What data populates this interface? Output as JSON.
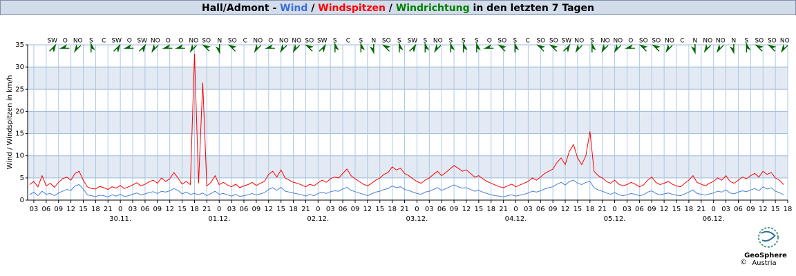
{
  "chart_data": {
    "type": "line",
    "title_parts": [
      {
        "text": "Hall/Admont - ",
        "color": "#000000"
      },
      {
        "text": "Wind",
        "color": "#3a6fd8"
      },
      {
        "text": " / ",
        "color": "#000000"
      },
      {
        "text": "Windspitzen",
        "color": "#ff0000"
      },
      {
        "text": " / ",
        "color": "#000000"
      },
      {
        "text": "Windrichtung",
        "color": "#008000"
      },
      {
        "text": " in den letzten 7 Tagen",
        "color": "#000000"
      }
    ],
    "y_label": "Wind / Windspitzen in km/h",
    "xlim": [
      1.5,
      186
    ],
    "ylim": [
      0,
      35
    ],
    "yticks": [
      0,
      5,
      10,
      15,
      20,
      25,
      30,
      35
    ],
    "grid": true,
    "xticks": [
      {
        "value": 3,
        "label": "03"
      },
      {
        "value": 6,
        "label": "06"
      },
      {
        "value": 9,
        "label": "09"
      },
      {
        "value": 12,
        "label": "12"
      },
      {
        "value": 15,
        "label": "15"
      },
      {
        "value": 18,
        "label": "18"
      },
      {
        "value": 21,
        "label": "21"
      },
      {
        "value": 24,
        "label": "0"
      },
      {
        "value": 27,
        "label": "03"
      },
      {
        "value": 30,
        "label": "06"
      },
      {
        "value": 33,
        "label": "09"
      },
      {
        "value": 36,
        "label": "12"
      },
      {
        "value": 39,
        "label": "15"
      },
      {
        "value": 42,
        "label": "18"
      },
      {
        "value": 45,
        "label": "21"
      },
      {
        "value": 48,
        "label": "0"
      },
      {
        "value": 51,
        "label": "03"
      },
      {
        "value": 54,
        "label": "06"
      },
      {
        "value": 57,
        "label": "09"
      },
      {
        "value": 60,
        "label": "12"
      },
      {
        "value": 63,
        "label": "15"
      },
      {
        "value": 66,
        "label": "18"
      },
      {
        "value": 69,
        "label": "21"
      },
      {
        "value": 72,
        "label": "0"
      },
      {
        "value": 75,
        "label": "03"
      },
      {
        "value": 78,
        "label": "06"
      },
      {
        "value": 81,
        "label": "09"
      },
      {
        "value": 84,
        "label": "12"
      },
      {
        "value": 87,
        "label": "15"
      },
      {
        "value": 90,
        "label": "18"
      },
      {
        "value": 93,
        "label": "21"
      },
      {
        "value": 96,
        "label": "0"
      },
      {
        "value": 99,
        "label": "03"
      },
      {
        "value": 102,
        "label": "06"
      },
      {
        "value": 105,
        "label": "09"
      },
      {
        "value": 108,
        "label": "12"
      },
      {
        "value": 111,
        "label": "15"
      },
      {
        "value": 114,
        "label": "18"
      },
      {
        "value": 117,
        "label": "21"
      },
      {
        "value": 120,
        "label": "0"
      },
      {
        "value": 123,
        "label": "03"
      },
      {
        "value": 126,
        "label": "06"
      },
      {
        "value": 129,
        "label": "09"
      },
      {
        "value": 132,
        "label": "12"
      },
      {
        "value": 135,
        "label": "15"
      },
      {
        "value": 138,
        "label": "18"
      },
      {
        "value": 141,
        "label": "21"
      },
      {
        "value": 144,
        "label": "0"
      },
      {
        "value": 147,
        "label": "03"
      },
      {
        "value": 150,
        "label": "06"
      },
      {
        "value": 153,
        "label": "09"
      },
      {
        "value": 156,
        "label": "12"
      },
      {
        "value": 159,
        "label": "15"
      },
      {
        "value": 162,
        "label": "18"
      },
      {
        "value": 165,
        "label": "21"
      },
      {
        "value": 168,
        "label": "0"
      },
      {
        "value": 171,
        "label": "03"
      },
      {
        "value": 174,
        "label": "06"
      },
      {
        "value": 177,
        "label": "09"
      },
      {
        "value": 180,
        "label": "12"
      },
      {
        "value": 183,
        "label": "15"
      },
      {
        "value": 186,
        "label": "18"
      }
    ],
    "date_labels": [
      {
        "value": 24,
        "label": "30.11."
      },
      {
        "value": 48,
        "label": "01.12."
      },
      {
        "value": 72,
        "label": "02.12."
      },
      {
        "value": 96,
        "label": "03.12."
      },
      {
        "value": 120,
        "label": "04.12."
      },
      {
        "value": 144,
        "label": "05.12."
      },
      {
        "value": 168,
        "label": "06.12."
      }
    ],
    "x": [
      2,
      3,
      4,
      5,
      6,
      7,
      8,
      9,
      10,
      11,
      12,
      13,
      14,
      15,
      16,
      17,
      18,
      19,
      20,
      21,
      22,
      23,
      24,
      25,
      26,
      27,
      28,
      29,
      30,
      31,
      32,
      33,
      34,
      35,
      36,
      37,
      38,
      39,
      40,
      41,
      42,
      43,
      44,
      45,
      46,
      47,
      48,
      49,
      50,
      51,
      52,
      53,
      54,
      55,
      56,
      57,
      58,
      59,
      60,
      61,
      62,
      63,
      64,
      65,
      66,
      67,
      68,
      69,
      70,
      71,
      72,
      73,
      74,
      75,
      76,
      77,
      78,
      79,
      80,
      81,
      82,
      83,
      84,
      85,
      86,
      87,
      88,
      89,
      90,
      91,
      92,
      93,
      94,
      95,
      96,
      97,
      98,
      99,
      100,
      101,
      102,
      103,
      104,
      105,
      106,
      107,
      108,
      109,
      110,
      111,
      112,
      113,
      114,
      115,
      116,
      117,
      118,
      119,
      120,
      121,
      122,
      123,
      124,
      125,
      126,
      127,
      128,
      129,
      130,
      131,
      132,
      133,
      134,
      135,
      136,
      137,
      138,
      139,
      140,
      141,
      142,
      143,
      144,
      145,
      146,
      147,
      148,
      149,
      150,
      151,
      152,
      153,
      154,
      155,
      156,
      157,
      158,
      159,
      160,
      161,
      162,
      163,
      164,
      165,
      166,
      167,
      168,
      169,
      170,
      171,
      172,
      173,
      174,
      175,
      176,
      177,
      178,
      179,
      180,
      181,
      182,
      183,
      184,
      185
    ],
    "series": [
      {
        "name": "Windspitzen",
        "color": "#ff0000",
        "values": [
          3.5,
          4.2,
          3.0,
          5.5,
          3.2,
          3.8,
          2.9,
          4.0,
          4.8,
          5.2,
          4.5,
          6.0,
          6.5,
          4.5,
          3.0,
          2.6,
          2.5,
          3.1,
          2.8,
          2.4,
          3.0,
          2.7,
          3.3,
          2.6,
          3.0,
          3.4,
          3.9,
          3.2,
          3.6,
          4.1,
          4.5,
          3.8,
          5.0,
          4.2,
          4.8,
          6.2,
          5.0,
          3.6,
          4.2,
          3.5,
          33.0,
          3.8,
          26.5,
          3.2,
          4.0,
          5.5,
          3.5,
          4.0,
          3.4,
          3.0,
          3.6,
          2.8,
          3.2,
          3.5,
          4.0,
          3.3,
          3.8,
          4.2,
          5.8,
          6.5,
          5.2,
          6.8,
          5.0,
          4.5,
          4.0,
          3.8,
          3.4,
          3.0,
          3.6,
          3.2,
          3.9,
          4.5,
          4.0,
          4.8,
          5.2,
          5.0,
          6.0,
          7.0,
          5.5,
          4.8,
          4.2,
          3.6,
          3.2,
          3.8,
          4.5,
          5.0,
          5.8,
          6.2,
          7.5,
          6.8,
          7.2,
          6.0,
          5.5,
          4.8,
          4.2,
          3.8,
          4.5,
          5.0,
          5.8,
          6.5,
          5.5,
          6.2,
          7.0,
          7.8,
          7.2,
          6.5,
          6.8,
          6.0,
          5.2,
          5.5,
          4.8,
          4.2,
          3.8,
          3.4,
          3.0,
          2.8,
          3.2,
          3.6,
          3.0,
          3.4,
          3.8,
          4.2,
          5.0,
          4.5,
          5.2,
          6.0,
          6.5,
          7.0,
          8.5,
          9.5,
          8.0,
          11.0,
          12.5,
          9.5,
          8.0,
          10.0,
          15.5,
          6.5,
          5.5,
          5.0,
          4.2,
          3.8,
          4.5,
          3.6,
          3.2,
          3.5,
          4.0,
          3.6,
          3.0,
          3.4,
          4.5,
          5.2,
          4.0,
          3.5,
          3.8,
          4.2,
          3.6,
          3.2,
          3.0,
          3.8,
          4.5,
          5.5,
          4.0,
          3.6,
          3.2,
          3.8,
          4.2,
          5.0,
          4.5,
          5.5,
          4.2,
          3.8,
          4.5,
          5.2,
          4.8,
          5.5,
          6.0,
          5.2,
          6.5,
          5.8,
          6.2,
          5.0,
          4.5,
          3.5
        ]
      },
      {
        "name": "Wind",
        "color": "#4a7fd8",
        "values": [
          1.2,
          1.8,
          1.0,
          2.0,
          1.3,
          1.5,
          1.0,
          1.6,
          2.0,
          2.4,
          2.2,
          3.2,
          3.5,
          2.5,
          1.2,
          1.0,
          0.8,
          1.1,
          1.0,
          0.7,
          1.2,
          0.9,
          1.3,
          0.8,
          1.0,
          1.3,
          1.6,
          1.2,
          1.4,
          1.7,
          1.9,
          1.5,
          2.0,
          1.8,
          2.1,
          2.6,
          2.2,
          1.4,
          1.8,
          1.3,
          1.5,
          1.2,
          1.6,
          1.0,
          1.5,
          2.0,
          1.3,
          1.5,
          1.2,
          0.9,
          1.3,
          0.8,
          1.0,
          1.2,
          1.5,
          1.1,
          1.4,
          1.7,
          2.4,
          2.8,
          2.2,
          2.9,
          2.0,
          1.8,
          1.6,
          1.4,
          1.2,
          0.9,
          1.3,
          1.0,
          1.5,
          1.8,
          1.5,
          1.9,
          2.1,
          2.0,
          2.5,
          2.9,
          2.2,
          1.9,
          1.6,
          1.3,
          1.0,
          1.4,
          1.8,
          2.0,
          2.4,
          2.6,
          3.2,
          2.8,
          3.0,
          2.4,
          2.2,
          1.8,
          1.5,
          1.3,
          1.8,
          2.0,
          2.4,
          2.8,
          2.2,
          2.6,
          3.0,
          3.4,
          3.0,
          2.7,
          2.8,
          2.4,
          2.0,
          2.2,
          1.8,
          1.5,
          1.2,
          1.0,
          0.9,
          0.7,
          1.0,
          1.2,
          0.9,
          1.1,
          1.3,
          1.6,
          2.0,
          1.8,
          2.1,
          2.5,
          2.8,
          3.0,
          3.6,
          4.0,
          3.4,
          4.2,
          4.5,
          3.8,
          3.5,
          4.0,
          4.2,
          2.8,
          2.3,
          2.0,
          1.6,
          1.3,
          1.7,
          1.2,
          1.0,
          1.2,
          1.5,
          1.3,
          1.0,
          1.2,
          1.8,
          2.1,
          1.5,
          1.2,
          1.4,
          1.6,
          1.3,
          1.1,
          1.0,
          1.4,
          1.8,
          2.3,
          1.5,
          1.3,
          1.1,
          1.4,
          1.6,
          2.0,
          1.8,
          2.3,
          1.6,
          1.4,
          1.8,
          2.1,
          1.9,
          2.3,
          2.6,
          2.1,
          3.0,
          2.5,
          2.8,
          2.0,
          1.7,
          1.2
        ]
      }
    ],
    "wind_direction": {
      "color": "#006400",
      "x": [
        7.5,
        10.6,
        13.7,
        16.9,
        20.0,
        23.1,
        26.2,
        29.3,
        32.5,
        35.6,
        38.7,
        41.8,
        44.9,
        48.1,
        51.2,
        54.3,
        57.4,
        60.5,
        63.7,
        66.8,
        69.9,
        73.0,
        76.1,
        79.3,
        82.4,
        85.5,
        88.6,
        91.7,
        94.9,
        98.0,
        101.1,
        104.2,
        107.3,
        110.5,
        113.6,
        116.7,
        119.8,
        122.9,
        126.1,
        129.2,
        132.3,
        135.4,
        138.5,
        141.7,
        144.8,
        147.9,
        151.0,
        154.1,
        157.3,
        160.4,
        163.5,
        166.6,
        169.7,
        172.9,
        176.0,
        179.1,
        182.2,
        185.3
      ],
      "labels": [
        "SW",
        "O",
        "NO",
        "S",
        "C",
        "SW",
        "O",
        "SW",
        "NO",
        "O",
        "O",
        "NO",
        "SO",
        "N",
        "SO",
        "C",
        "NO",
        "O",
        "NO",
        "NO",
        "SO",
        "SW",
        "S",
        "C",
        "S",
        "N",
        "SO",
        "S",
        "SW",
        "S",
        "NO",
        "S",
        "S",
        "S",
        "O",
        "SO",
        "S",
        "C",
        "SO",
        "SO",
        "SW",
        "NO",
        "S",
        "NO",
        "NO",
        "O",
        "SO",
        "SO",
        "NO",
        "C",
        "N",
        "NO",
        "NO",
        "N",
        "S",
        "SO",
        "SO",
        "NO"
      ],
      "angles": [
        225,
        90,
        45,
        180,
        null,
        225,
        90,
        225,
        45,
        90,
        90,
        45,
        135,
        0,
        135,
        null,
        45,
        90,
        45,
        45,
        135,
        225,
        180,
        null,
        180,
        0,
        135,
        180,
        225,
        180,
        45,
        180,
        180,
        180,
        90,
        135,
        180,
        null,
        135,
        135,
        225,
        45,
        180,
        45,
        45,
        90,
        135,
        135,
        45,
        null,
        0,
        45,
        45,
        0,
        180,
        135,
        135,
        45
      ]
    },
    "footer": {
      "logo_name": "GeoSphere",
      "logo_sub": "Austria",
      "copyright": "©"
    }
  }
}
